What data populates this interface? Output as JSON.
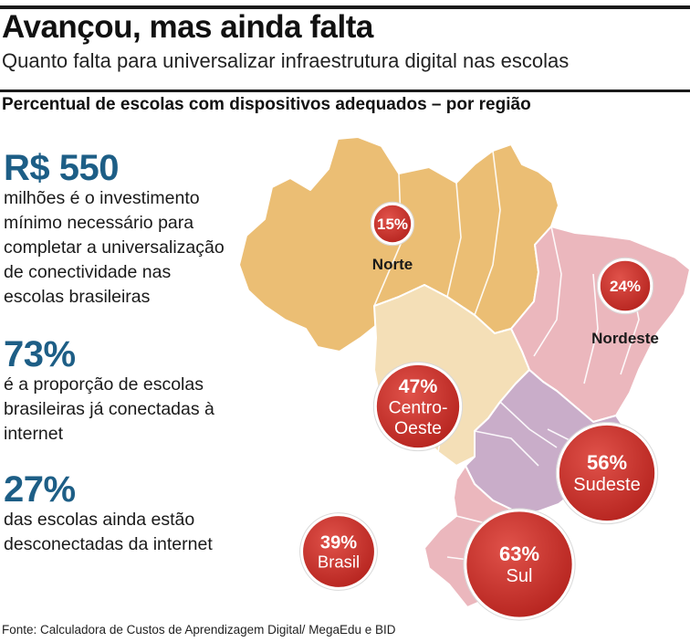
{
  "header": {
    "title": "Avançou, mas ainda falta",
    "subtitle": "Quanto falta para universalizar infraestrutura digital nas escolas"
  },
  "section_title": "Percentual de escolas com dispositivos adequados – por região",
  "stats": [
    {
      "value": "R$ 550",
      "lines": [
        "milhões é o investimento",
        "mínimo necessário para",
        "completar a universalização",
        "de conectividade nas",
        "escolas brasileiras"
      ]
    },
    {
      "value": "73%",
      "lines": [
        "é a proporção de escolas",
        "brasileiras já conectadas à",
        "internet"
      ]
    },
    {
      "value": "27%",
      "lines": [
        "das escolas ainda estão",
        "desconectadas da internet"
      ]
    }
  ],
  "colors": {
    "norte": "#ebbe74",
    "centro_oeste": "#f4dfb7",
    "nordeste": "#ebb7bd",
    "sudeste": "#c9adc9",
    "sul": "#ebb7bd",
    "bubble": "#c8302a",
    "stat_blue": "#1d5e86"
  },
  "chart_data": {
    "type": "map",
    "title": "Avançou, mas ainda falta",
    "subtitle": "Quanto falta para universalizar infraestrutura digital nas escolas",
    "measure": "Percentual de escolas com dispositivos adequados – por região",
    "unit": "%",
    "regions": [
      {
        "id": "norte",
        "name": "Norte",
        "value": 15,
        "label": "15%"
      },
      {
        "id": "nordeste",
        "name": "Nordeste",
        "value": 24,
        "label": "24%"
      },
      {
        "id": "centro_oeste",
        "name": "Centro-Oeste",
        "value": 47,
        "label": "47%"
      },
      {
        "id": "sudeste",
        "name": "Sudeste",
        "value": 56,
        "label": "56%"
      },
      {
        "id": "sul",
        "name": "Sul",
        "value": 63,
        "label": "63%"
      },
      {
        "id": "brasil",
        "name": "Brasil",
        "value": 39,
        "label": "39%"
      }
    ]
  },
  "footer": {
    "source": "Fonte:  Calculadora de Custos de Aprendizagem Digital/ MegaEdu e BID"
  }
}
